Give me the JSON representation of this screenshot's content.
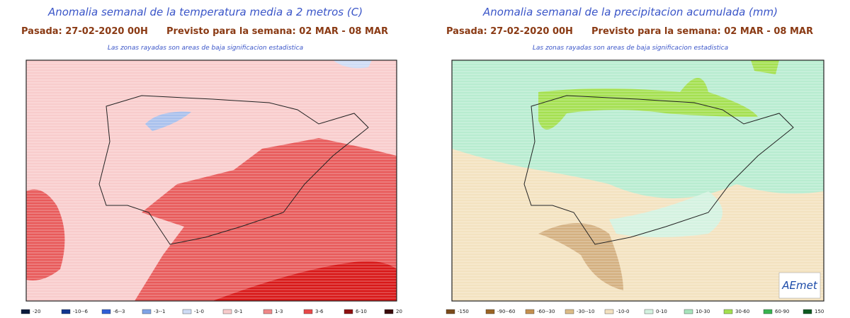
{
  "maps": [
    {
      "title": "Anomalia semanal de la temperatura media a 2 metros (C)",
      "issued": "Pasada: 27-02-2020 00H",
      "forecast": "Previsto para la semana:  02 MAR - 08 MAR",
      "note": "Las zonas rayadas son areas de baja significacion estadistica",
      "legend": [
        {
          "label": "-20",
          "color": "#0a1a3c"
        },
        {
          "label": "-10--6",
          "color": "#12368f"
        },
        {
          "label": "-6--3",
          "color": "#2f5fd6"
        },
        {
          "label": "-3--1",
          "color": "#7fa4e6"
        },
        {
          "label": "-1-0",
          "color": "#cfdcf5"
        },
        {
          "label": "0-1",
          "color": "#f8cccc"
        },
        {
          "label": "1-3",
          "color": "#f08888"
        },
        {
          "label": "3-6",
          "color": "#e84848"
        },
        {
          "label": "6-10",
          "color": "#8e1010"
        },
        {
          "label": "20",
          "color": "#3a0a0a"
        }
      ]
    },
    {
      "title": "Anomalia semanal de la precipitacion acumulada (mm)",
      "issued": "Pasada: 27-02-2020 00H",
      "forecast": "Previsto para la semana:  02 MAR - 08 MAR",
      "note": "Las zonas rayadas son areas de baja significacion estadistica",
      "logo": "AEmet",
      "legend": [
        {
          "label": "-150",
          "color": "#7a4a1a"
        },
        {
          "label": "-90--60",
          "color": "#9a6424"
        },
        {
          "label": "-60--30",
          "color": "#c49050"
        },
        {
          "label": "-30--10",
          "color": "#dcbc88"
        },
        {
          "label": "-10-0",
          "color": "#f3e2c0"
        },
        {
          "label": "0-10",
          "color": "#d4f2e0"
        },
        {
          "label": "10-30",
          "color": "#a8e4bc"
        },
        {
          "label": "30-60",
          "color": "#a4e050"
        },
        {
          "label": "60-90",
          "color": "#38b450"
        },
        {
          "label": "150",
          "color": "#0e5a20"
        }
      ]
    }
  ]
}
